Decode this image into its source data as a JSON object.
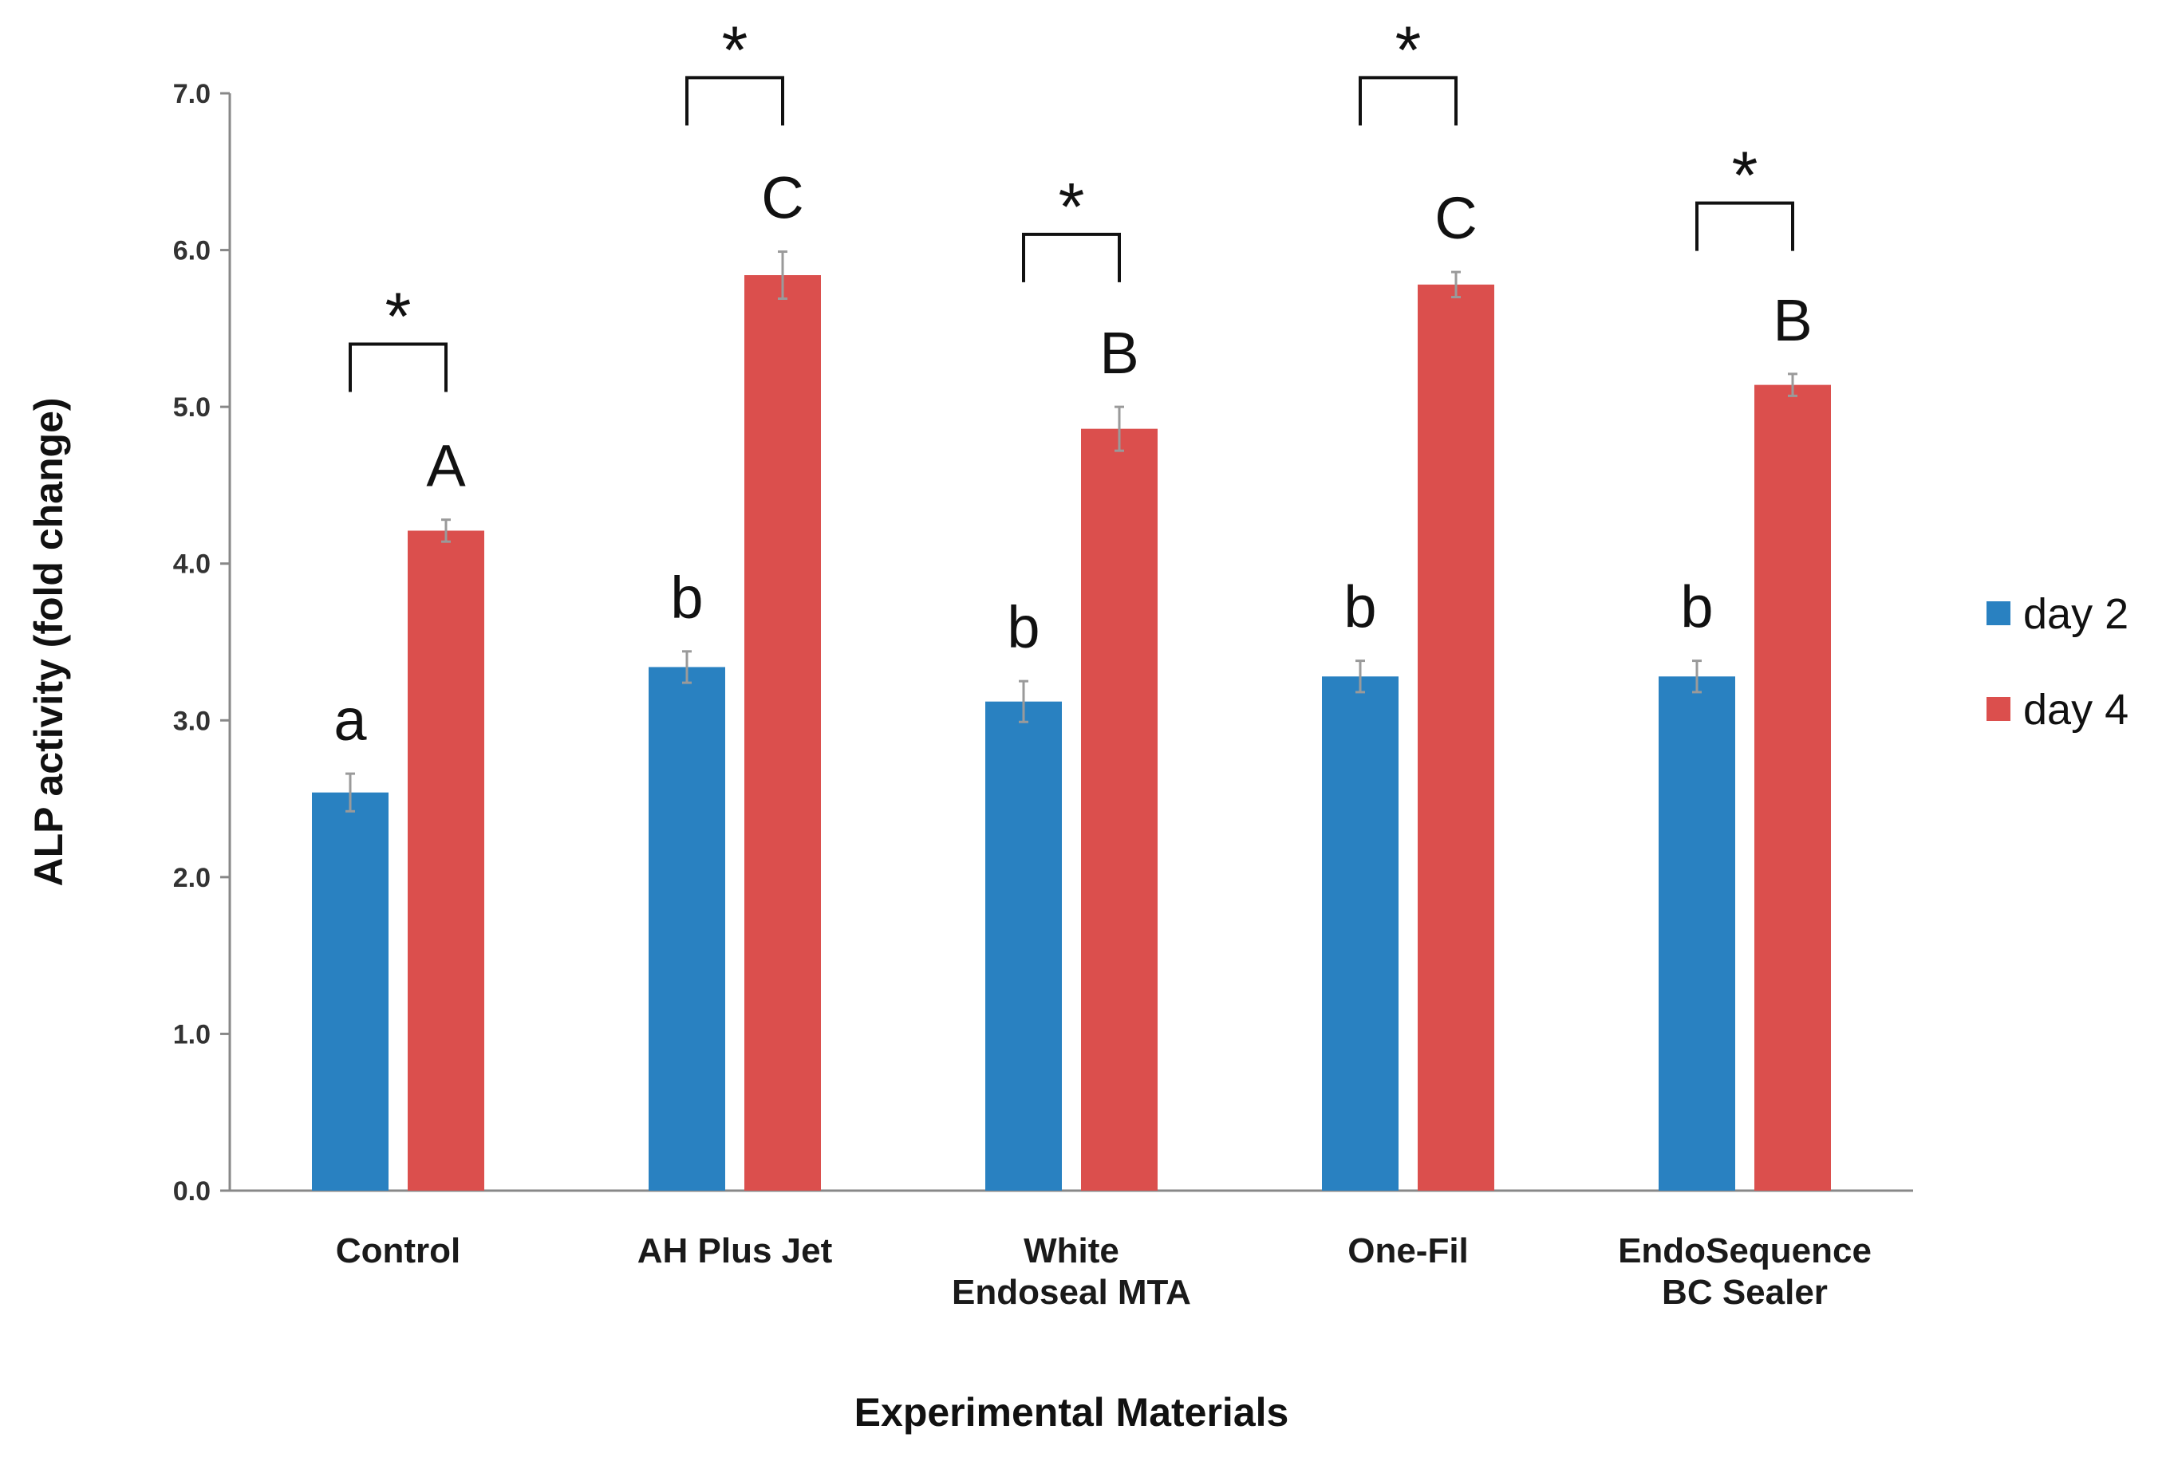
{
  "chart_data": {
    "type": "bar",
    "xlabel": "Experimental Materials",
    "ylabel": "ALP activity (fold change)",
    "ylim": [
      0,
      7
    ],
    "yticks": [
      "0.0",
      "1.0",
      "2.0",
      "3.0",
      "4.0",
      "5.0",
      "6.0",
      "7.0"
    ],
    "categories": [
      [
        "Control"
      ],
      [
        "AH Plus Jet"
      ],
      [
        "White",
        "Endoseal MTA"
      ],
      [
        "One-Fil"
      ],
      [
        "EndoSequence",
        "BC Sealer"
      ]
    ],
    "series": [
      {
        "name": "day 2",
        "color": "#2981C1",
        "values": [
          2.54,
          3.34,
          3.12,
          3.28,
          3.28
        ],
        "errors": [
          0.12,
          0.1,
          0.13,
          0.1,
          0.1
        ],
        "labels": [
          "a",
          "b",
          "b",
          "b",
          "b"
        ]
      },
      {
        "name": "day 4",
        "color": "#DB4F4D",
        "values": [
          4.21,
          5.84,
          4.86,
          5.78,
          5.14
        ],
        "errors": [
          0.07,
          0.15,
          0.14,
          0.08,
          0.07
        ],
        "labels": [
          "A",
          "C",
          "B",
          "C",
          "B"
        ]
      }
    ],
    "significance": [
      "*",
      "*",
      "*",
      "*",
      "*"
    ],
    "significance_top": [
      5.4,
      7.1,
      6.1,
      7.1,
      6.3
    ],
    "legend_position": "right",
    "grid": false
  }
}
